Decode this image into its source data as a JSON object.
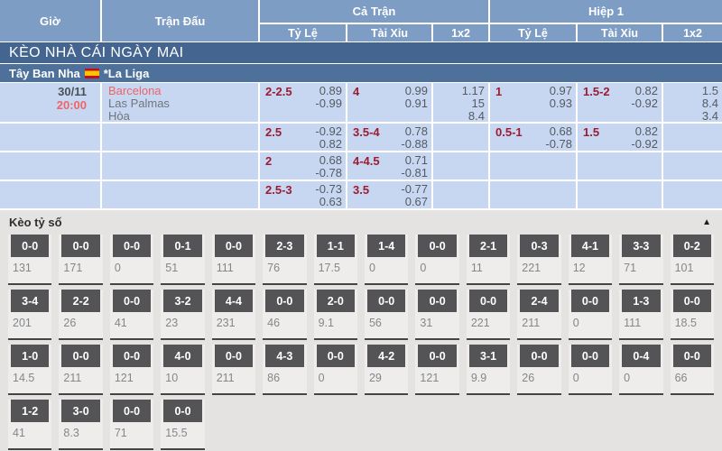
{
  "header": {
    "time_label": "Giờ",
    "match_label": "Trận Đấu",
    "full_label": "Cả Trận",
    "half_label": "Hiệp 1",
    "sub_handicap": "Tỷ Lệ",
    "sub_overunder": "Tài Xỉu",
    "sub_1x2": "1x2"
  },
  "banner": {
    "title": "KÈO NHÀ CÁI NGÀY MAI"
  },
  "league": {
    "country": "Tây Ban Nha",
    "flag_icon": "spain-flag",
    "name": "*La Liga"
  },
  "match": {
    "date": "30/11",
    "time": "20:00",
    "home": "Barcelona",
    "away": "Las Palmas",
    "draw": "Hòa"
  },
  "odds_rows": [
    {
      "cells": [
        {
          "line": "2-2.5",
          "vals": [
            "0.89",
            "-0.99"
          ]
        },
        {
          "line": "4",
          "vals": [
            "0.99",
            "0.91"
          ]
        },
        {
          "line": "",
          "vals": [
            "1.17",
            "15",
            "8.4"
          ]
        },
        {
          "line": "1",
          "vals": [
            "0.97",
            "0.93"
          ]
        },
        {
          "line": "1.5-2",
          "vals": [
            "0.82",
            "-0.92"
          ]
        },
        {
          "line": "",
          "vals": [
            "1.5",
            "8.4",
            "3.4"
          ]
        }
      ]
    },
    {
      "cells": [
        {
          "line": "2.5",
          "vals": [
            "-0.92",
            "0.82"
          ]
        },
        {
          "line": "3.5-4",
          "vals": [
            "0.78",
            "-0.88"
          ]
        },
        {
          "line": "",
          "vals": []
        },
        {
          "line": "0.5-1",
          "vals": [
            "0.68",
            "-0.78"
          ]
        },
        {
          "line": "1.5",
          "vals": [
            "0.82",
            "-0.92"
          ]
        },
        {
          "line": "",
          "vals": []
        }
      ]
    },
    {
      "cells": [
        {
          "line": "2",
          "vals": [
            "0.68",
            "-0.78"
          ]
        },
        {
          "line": "4-4.5",
          "vals": [
            "0.71",
            "-0.81"
          ]
        },
        {
          "line": "",
          "vals": []
        },
        {
          "line": "",
          "vals": []
        },
        {
          "line": "",
          "vals": []
        },
        {
          "line": "",
          "vals": []
        }
      ]
    },
    {
      "cells": [
        {
          "line": "2.5-3",
          "vals": [
            "-0.73",
            "0.63"
          ]
        },
        {
          "line": "3.5",
          "vals": [
            "-0.77",
            "0.67"
          ]
        },
        {
          "line": "",
          "vals": []
        },
        {
          "line": "",
          "vals": []
        },
        {
          "line": "",
          "vals": []
        },
        {
          "line": "",
          "vals": []
        }
      ]
    }
  ],
  "score_section": {
    "title": "Kèo tỷ số",
    "collapse_icon": "▲",
    "rows": [
      [
        {
          "score": "0-0",
          "value": "131"
        },
        {
          "score": "0-0",
          "value": "171"
        },
        {
          "score": "0-0",
          "value": "0"
        },
        {
          "score": "0-1",
          "value": "51"
        },
        {
          "score": "0-0",
          "value": "111"
        },
        {
          "score": "2-3",
          "value": "76"
        },
        {
          "score": "1-1",
          "value": "17.5"
        },
        {
          "score": "1-4",
          "value": "0"
        },
        {
          "score": "0-0",
          "value": "0"
        },
        {
          "score": "2-1",
          "value": "11"
        },
        {
          "score": "0-3",
          "value": "221"
        },
        {
          "score": "4-1",
          "value": "12"
        },
        {
          "score": "3-3",
          "value": "71"
        },
        {
          "score": "0-2",
          "value": "101"
        }
      ],
      [
        {
          "score": "3-4",
          "value": "201"
        },
        {
          "score": "2-2",
          "value": "26"
        },
        {
          "score": "0-0",
          "value": "41"
        },
        {
          "score": "3-2",
          "value": "23"
        },
        {
          "score": "4-4",
          "value": "231"
        },
        {
          "score": "0-0",
          "value": "46"
        },
        {
          "score": "2-0",
          "value": "9.1"
        },
        {
          "score": "0-0",
          "value": "56"
        },
        {
          "score": "0-0",
          "value": "31"
        },
        {
          "score": "0-0",
          "value": "221"
        },
        {
          "score": "2-4",
          "value": "211"
        },
        {
          "score": "0-0",
          "value": "0"
        },
        {
          "score": "1-3",
          "value": "111"
        },
        {
          "score": "0-0",
          "value": "18.5"
        }
      ],
      [
        {
          "score": "1-0",
          "value": "14.5"
        },
        {
          "score": "0-0",
          "value": "211"
        },
        {
          "score": "0-0",
          "value": "121"
        },
        {
          "score": "4-0",
          "value": "10"
        },
        {
          "score": "0-0",
          "value": "211"
        },
        {
          "score": "4-3",
          "value": "86"
        },
        {
          "score": "0-0",
          "value": "0"
        },
        {
          "score": "4-2",
          "value": "29"
        },
        {
          "score": "0-0",
          "value": "121"
        },
        {
          "score": "3-1",
          "value": "9.9"
        },
        {
          "score": "0-0",
          "value": "26"
        },
        {
          "score": "0-0",
          "value": "0"
        },
        {
          "score": "0-4",
          "value": "0"
        },
        {
          "score": "0-0",
          "value": "66"
        }
      ],
      [
        {
          "score": "1-2",
          "value": "41"
        },
        {
          "score": "3-0",
          "value": "8.3"
        },
        {
          "score": "0-0",
          "value": "71"
        },
        {
          "score": "0-0",
          "value": "15.5"
        }
      ]
    ]
  },
  "colors": {
    "header_bg": "#7e9dc4",
    "banner_bg": "#44658f",
    "league_bg": "#4e719c",
    "row_bg": "#c7d7f2",
    "maroon": "#9b1c30",
    "val_gray": "#555a60",
    "accent_red": "#ee6565",
    "team_gray": "#6f757b",
    "date_gray": "#4a5157",
    "section_bg": "#e4e3e1",
    "strip_bg": "#efedeb",
    "btn_bg": "#545456",
    "strip_border": "#454545",
    "score_val": "#83878a"
  }
}
